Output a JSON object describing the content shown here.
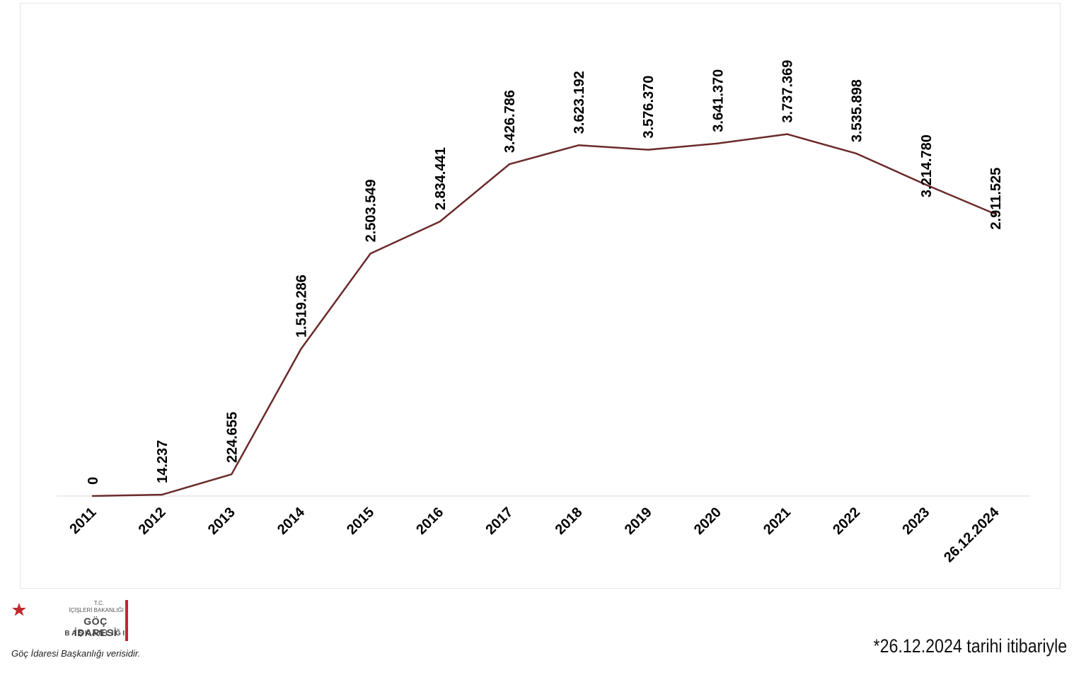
{
  "chart_data": {
    "type": "line",
    "title": "",
    "xlabel": "",
    "ylabel": "",
    "categories": [
      "2011",
      "2012",
      "2013",
      "2014",
      "2015",
      "2016",
      "2017",
      "2018",
      "2019",
      "2020",
      "2021",
      "2022",
      "2023",
      "26.12.2024"
    ],
    "values": [
      0,
      14237,
      224655,
      1519286,
      2503549,
      2834441,
      3426786,
      3623192,
      3576370,
      3641370,
      3737369,
      3535898,
      3214780,
      2911525
    ],
    "value_labels": [
      "0",
      "14.237",
      "224.655",
      "1.519.286",
      "2.503.549",
      "2.834.441",
      "3.426.786",
      "3.623.192",
      "3.576.370",
      "3.641.370",
      "3.737.369",
      "3.535.898",
      "3.214.780",
      "2.911.525"
    ],
    "ylim": [
      0,
      5700000
    ],
    "grid": false,
    "legend": "none",
    "line_color": "#6b2a2a"
  },
  "logo": {
    "tc": "T.C.",
    "ministry": "İÇİŞLERİ BAKANLIĞI",
    "name": "GÖÇ İDARESİ",
    "sub": "BAŞKANLIĞI",
    "caption": "Göç İdaresi Başkanlığı verisidir.",
    "red": "#c0282d"
  },
  "footnote": "*26.12.2024 tarihi itibariyle"
}
